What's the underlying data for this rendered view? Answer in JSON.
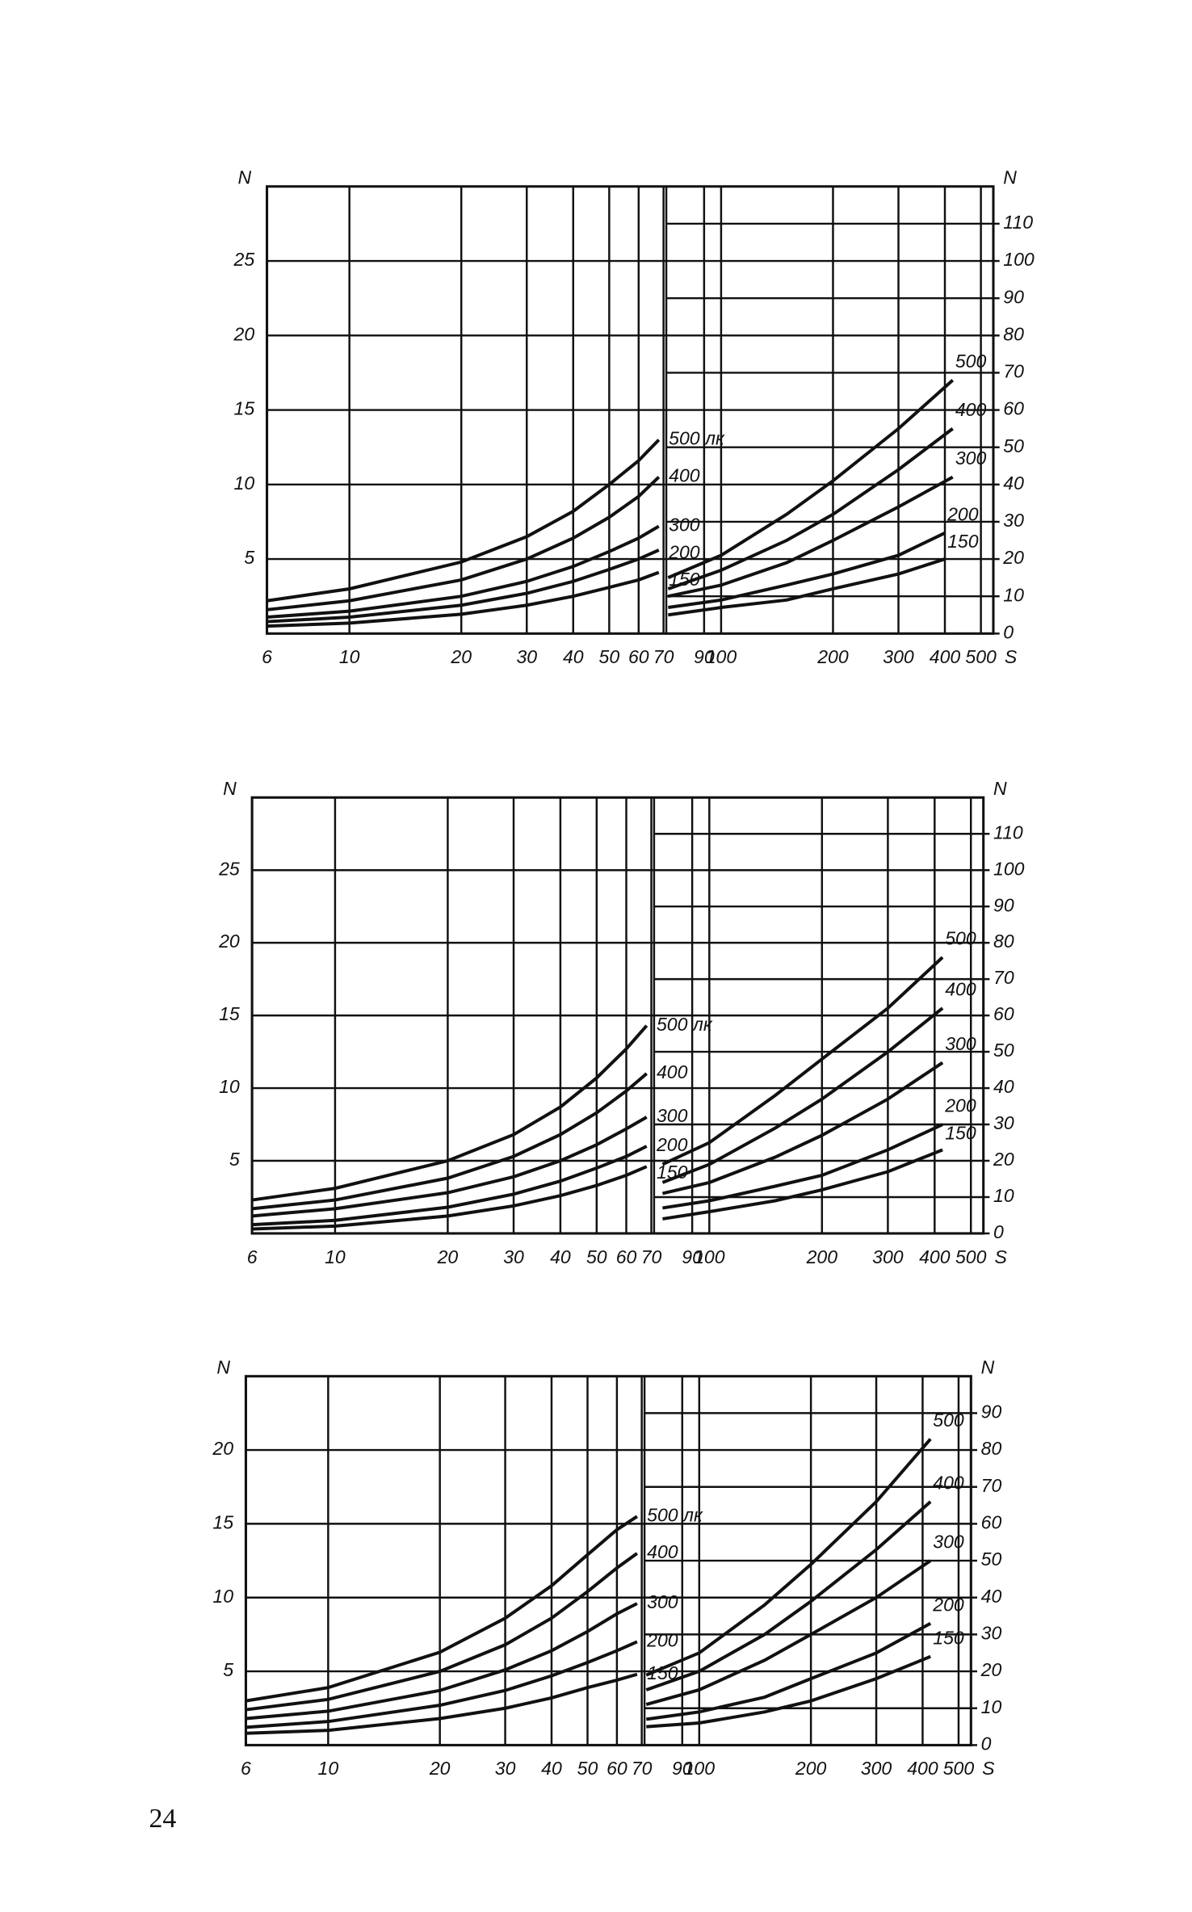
{
  "page_number": "24",
  "chart_data": [
    {
      "type": "line",
      "y_label": "N",
      "y2_label": "N",
      "x_label": "S",
      "log_x": true,
      "grid": true,
      "xlim": [
        6,
        540
      ],
      "xticks": [
        6,
        10,
        20,
        30,
        40,
        50,
        60,
        70,
        90,
        100,
        200,
        300,
        400,
        500
      ],
      "ylim": [
        0,
        30
      ],
      "yticks": [
        5,
        10,
        15,
        20,
        25
      ],
      "y2lim": [
        0,
        120
      ],
      "y2ticks": [
        0,
        10,
        20,
        30,
        40,
        50,
        60,
        70,
        80,
        90,
        100,
        110
      ],
      "series": [
        {
          "name": "500 лк",
          "color": "#111111",
          "x": [
            6,
            10,
            20,
            30,
            40,
            50,
            60,
            68
          ],
          "values": [
            2.2,
            3.0,
            4.8,
            6.5,
            8.2,
            10.0,
            11.6,
            13.0
          ]
        },
        {
          "name": "400",
          "color": "#111111",
          "x": [
            6,
            10,
            20,
            30,
            40,
            50,
            60,
            68
          ],
          "values": [
            1.6,
            2.2,
            3.6,
            5.0,
            6.4,
            7.8,
            9.2,
            10.5
          ]
        },
        {
          "name": "300",
          "color": "#111111",
          "x": [
            6,
            10,
            20,
            30,
            40,
            50,
            60,
            68
          ],
          "values": [
            1.1,
            1.5,
            2.5,
            3.5,
            4.5,
            5.5,
            6.4,
            7.2
          ]
        },
        {
          "name": "200",
          "color": "#111111",
          "x": [
            6,
            10,
            20,
            30,
            40,
            50,
            60,
            68
          ],
          "values": [
            0.8,
            1.1,
            1.9,
            2.7,
            3.5,
            4.3,
            5.0,
            5.6
          ]
        },
        {
          "name": "150",
          "color": "#111111",
          "x": [
            6,
            10,
            20,
            30,
            40,
            50,
            60,
            68
          ],
          "values": [
            0.5,
            0.7,
            1.3,
            1.9,
            2.5,
            3.1,
            3.6,
            4.1
          ]
        },
        {
          "name": "500",
          "color": "#111111",
          "axis": "y2",
          "x": [
            72,
            100,
            150,
            200,
            300,
            420
          ],
          "values": [
            15,
            21,
            32,
            41,
            55,
            68
          ]
        },
        {
          "name": "400",
          "color": "#111111",
          "axis": "y2",
          "x": [
            72,
            100,
            150,
            200,
            300,
            420
          ],
          "values": [
            12,
            17,
            25,
            32,
            44,
            55
          ]
        },
        {
          "name": "300",
          "color": "#111111",
          "axis": "y2",
          "x": [
            72,
            100,
            150,
            200,
            300,
            420
          ],
          "values": [
            10,
            13,
            19,
            25,
            34,
            42
          ]
        },
        {
          "name": "200",
          "color": "#111111",
          "axis": "y2",
          "x": [
            72,
            100,
            150,
            200,
            300,
            400
          ],
          "values": [
            7,
            9,
            13,
            16,
            21,
            27
          ]
        },
        {
          "name": "150",
          "color": "#111111",
          "axis": "y2",
          "x": [
            72,
            100,
            150,
            200,
            300,
            400
          ],
          "values": [
            5,
            7,
            9,
            12,
            16,
            20
          ]
        }
      ]
    },
    {
      "type": "line",
      "y_label": "N",
      "y2_label": "N",
      "x_label": "S",
      "log_x": true,
      "grid": true,
      "xlim": [
        6,
        540
      ],
      "xticks": [
        6,
        10,
        20,
        30,
        40,
        50,
        60,
        70,
        90,
        100,
        200,
        300,
        400,
        500
      ],
      "ylim": [
        0,
        30
      ],
      "yticks": [
        5,
        10,
        15,
        20,
        25
      ],
      "y2lim": [
        0,
        120
      ],
      "y2ticks": [
        0,
        10,
        20,
        30,
        40,
        50,
        60,
        70,
        80,
        90,
        100,
        110
      ],
      "series": [
        {
          "name": "500 лк",
          "color": "#111111",
          "x": [
            6,
            10,
            20,
            30,
            40,
            50,
            60,
            68
          ],
          "values": [
            2.3,
            3.1,
            5.0,
            6.8,
            8.7,
            10.7,
            12.7,
            14.3
          ]
        },
        {
          "name": "400",
          "color": "#111111",
          "x": [
            6,
            10,
            20,
            30,
            40,
            50,
            60,
            68
          ],
          "values": [
            1.7,
            2.3,
            3.8,
            5.3,
            6.8,
            8.3,
            9.8,
            11.0
          ]
        },
        {
          "name": "300",
          "color": "#111111",
          "x": [
            6,
            10,
            20,
            30,
            40,
            50,
            60,
            68
          ],
          "values": [
            1.2,
            1.7,
            2.8,
            3.9,
            5.0,
            6.1,
            7.2,
            8.0
          ]
        },
        {
          "name": "200",
          "color": "#111111",
          "x": [
            6,
            10,
            20,
            30,
            40,
            50,
            60,
            68
          ],
          "values": [
            0.6,
            0.9,
            1.8,
            2.7,
            3.6,
            4.5,
            5.3,
            6.0
          ]
        },
        {
          "name": "150",
          "color": "#111111",
          "x": [
            6,
            10,
            20,
            30,
            40,
            50,
            60,
            68
          ],
          "values": [
            0.3,
            0.5,
            1.2,
            1.9,
            2.6,
            3.3,
            4.0,
            4.6
          ]
        },
        {
          "name": "500",
          "color": "#111111",
          "axis": "y2",
          "x": [
            75,
            100,
            150,
            200,
            300,
            420
          ],
          "values": [
            19,
            25,
            38,
            48,
            62,
            76
          ]
        },
        {
          "name": "400",
          "color": "#111111",
          "axis": "y2",
          "x": [
            75,
            100,
            150,
            200,
            300,
            420
          ],
          "values": [
            14,
            19,
            29,
            37,
            50,
            62
          ]
        },
        {
          "name": "300",
          "color": "#111111",
          "axis": "y2",
          "x": [
            75,
            100,
            150,
            200,
            300,
            420
          ],
          "values": [
            11,
            14,
            21,
            27,
            37,
            47
          ]
        },
        {
          "name": "200",
          "color": "#111111",
          "axis": "y2",
          "x": [
            75,
            100,
            150,
            200,
            300,
            420
          ],
          "values": [
            7,
            9,
            13,
            16,
            23,
            30
          ]
        },
        {
          "name": "150",
          "color": "#111111",
          "axis": "y2",
          "x": [
            75,
            100,
            150,
            200,
            300,
            420
          ],
          "values": [
            4,
            6,
            9,
            12,
            17,
            23
          ]
        }
      ]
    },
    {
      "type": "line",
      "y_label": "N",
      "y2_label": "N",
      "x_label": "S",
      "log_x": true,
      "grid": true,
      "xlim": [
        6,
        540
      ],
      "xticks": [
        6,
        10,
        20,
        30,
        40,
        50,
        60,
        70,
        90,
        100,
        200,
        300,
        400,
        500
      ],
      "ylim": [
        0,
        25
      ],
      "yticks": [
        5,
        10,
        15,
        20
      ],
      "y2lim": [
        0,
        100
      ],
      "y2ticks": [
        0,
        10,
        20,
        30,
        40,
        50,
        60,
        70,
        80,
        90
      ],
      "series": [
        {
          "name": "500 лк",
          "color": "#111111",
          "x": [
            6,
            10,
            20,
            30,
            40,
            50,
            60,
            68
          ],
          "values": [
            3.0,
            3.9,
            6.3,
            8.6,
            10.8,
            12.9,
            14.6,
            15.5
          ]
        },
        {
          "name": "400",
          "color": "#111111",
          "x": [
            6,
            10,
            20,
            30,
            40,
            50,
            60,
            68
          ],
          "values": [
            2.4,
            3.1,
            5.0,
            6.8,
            8.6,
            10.4,
            12.0,
            13.0
          ]
        },
        {
          "name": "300",
          "color": "#111111",
          "x": [
            6,
            10,
            20,
            30,
            40,
            50,
            60,
            68
          ],
          "values": [
            1.8,
            2.3,
            3.7,
            5.1,
            6.4,
            7.7,
            8.9,
            9.6
          ]
        },
        {
          "name": "200",
          "color": "#111111",
          "x": [
            6,
            10,
            20,
            30,
            40,
            50,
            60,
            68
          ],
          "values": [
            1.2,
            1.6,
            2.7,
            3.7,
            4.7,
            5.6,
            6.4,
            7.0
          ]
        },
        {
          "name": "150",
          "color": "#111111",
          "x": [
            6,
            10,
            20,
            30,
            40,
            50,
            60,
            68
          ],
          "values": [
            0.8,
            1.0,
            1.8,
            2.5,
            3.2,
            3.9,
            4.4,
            4.8
          ]
        },
        {
          "name": "500",
          "color": "#111111",
          "axis": "y2",
          "x": [
            72,
            100,
            150,
            200,
            300,
            420
          ],
          "values": [
            19,
            25,
            38,
            49,
            66,
            83
          ]
        },
        {
          "name": "400",
          "color": "#111111",
          "axis": "y2",
          "x": [
            72,
            100,
            150,
            200,
            300,
            420
          ],
          "values": [
            15,
            20,
            30,
            39,
            53,
            66
          ]
        },
        {
          "name": "300",
          "color": "#111111",
          "axis": "y2",
          "x": [
            72,
            100,
            150,
            200,
            300,
            420
          ],
          "values": [
            11,
            15,
            23,
            30,
            40,
            50
          ]
        },
        {
          "name": "200",
          "color": "#111111",
          "axis": "y2",
          "x": [
            72,
            100,
            150,
            200,
            300,
            420
          ],
          "values": [
            7,
            9,
            13,
            18,
            25,
            33
          ]
        },
        {
          "name": "150",
          "color": "#111111",
          "axis": "y2",
          "x": [
            72,
            100,
            150,
            200,
            300,
            420
          ],
          "values": [
            5,
            6,
            9,
            12,
            18,
            24
          ]
        }
      ]
    }
  ]
}
